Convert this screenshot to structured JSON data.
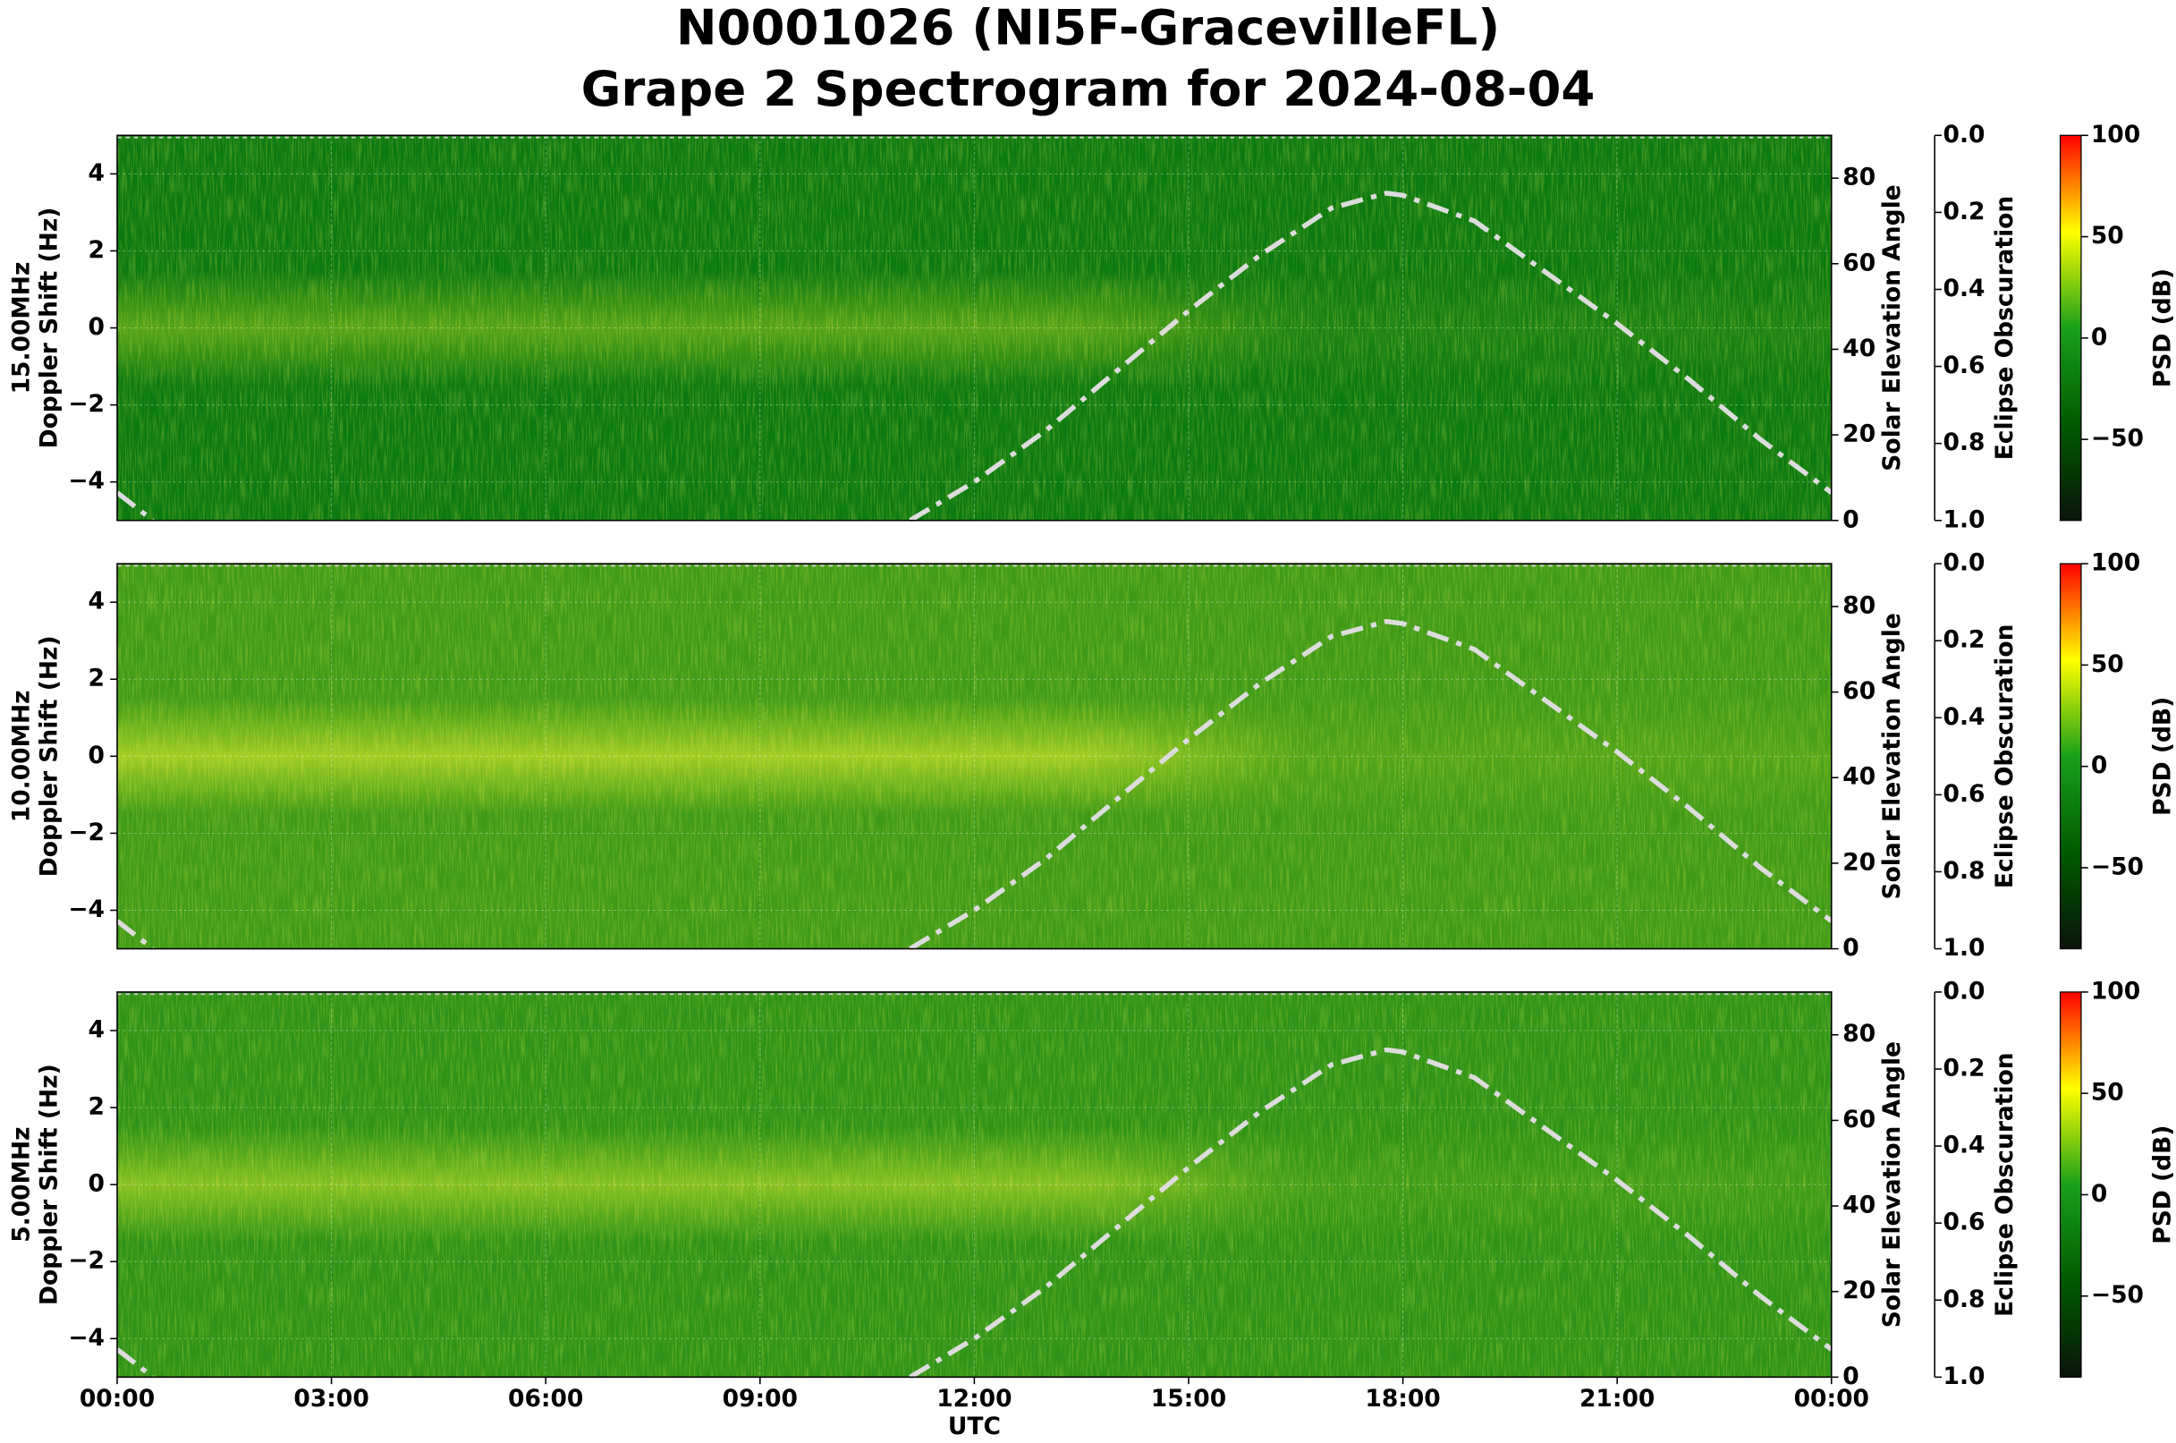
{
  "title": [
    "N0001026 (NI5F-GracevilleFL)",
    "Grape 2 Spectrogram for 2024-08-04"
  ],
  "chart_data": [
    {
      "type": "spectrogram",
      "ylabel": [
        "15.00MHz",
        "Doppler Shift (Hz)"
      ],
      "ylim": [
        -5,
        5
      ],
      "yticks": [
        {
          "value": -4,
          "label": "−4"
        },
        {
          "value": -2,
          "label": "−2"
        },
        0,
        2,
        4
      ],
      "grid": true,
      "y2label": "Solar Elevation Angle",
      "y2lim": [
        0,
        90
      ],
      "y2ticks": [
        0,
        20,
        40,
        60,
        80
      ],
      "y3label": "Eclipse Obscuration",
      "y3lim": [
        0,
        1
      ],
      "y3inverted": true,
      "y3ticks": [
        {
          "value": 0,
          "label": "0.0"
        },
        {
          "value": 0.2,
          "label": "0.2"
        },
        {
          "value": 0.4,
          "label": "0.4"
        },
        {
          "value": 0.6,
          "label": "0.6"
        },
        {
          "value": 0.8,
          "label": "0.8"
        },
        {
          "value": 1,
          "label": "1.0"
        }
      ],
      "clabel": "PSD (dB)",
      "clim": [
        -90,
        100
      ],
      "cticks": [
        100,
        50,
        0,
        {
          "value": -50,
          "label": "−50"
        }
      ],
      "cmap": [
        "#0a140a",
        "#005a00",
        "#1aa01a",
        "#ffff00",
        "#ff0000"
      ],
      "series": [
        {
          "color": "#dcdcdc",
          "axis": "y2",
          "x": [
            0,
            0.5,
            6,
            11.1,
            12,
            13,
            14,
            15,
            16,
            17,
            17.77,
            18,
            19,
            20,
            21,
            22,
            23,
            24
          ],
          "values": [
            6.5,
            0,
            null,
            0,
            9,
            21,
            35,
            49,
            62,
            73,
            76.5,
            76,
            70,
            58,
            46,
            33,
            19,
            6.5
          ]
        }
      ]
    },
    {
      "type": "spectrogram",
      "ylabel": [
        "10.00MHz",
        "Doppler Shift (Hz)"
      ],
      "ylim": [
        -5,
        5
      ],
      "yticks": [
        {
          "value": -4,
          "label": "−4"
        },
        {
          "value": -2,
          "label": "−2"
        },
        0,
        2,
        4
      ],
      "grid": true,
      "y2label": "Solar Elevation Angle",
      "y2lim": [
        0,
        90
      ],
      "y2ticks": [
        0,
        20,
        40,
        60,
        80
      ],
      "y3label": "Eclipse Obscuration",
      "y3lim": [
        0,
        1
      ],
      "y3inverted": true,
      "y3ticks": [
        {
          "value": 0,
          "label": "0.0"
        },
        {
          "value": 0.2,
          "label": "0.2"
        },
        {
          "value": 0.4,
          "label": "0.4"
        },
        {
          "value": 0.6,
          "label": "0.6"
        },
        {
          "value": 0.8,
          "label": "0.8"
        },
        {
          "value": 1,
          "label": "1.0"
        }
      ],
      "clabel": "PSD (dB)",
      "clim": [
        -90,
        100
      ],
      "cticks": [
        100,
        50,
        0,
        {
          "value": -50,
          "label": "−50"
        }
      ],
      "cmap": [
        "#0a140a",
        "#005a00",
        "#1aa01a",
        "#ffff00",
        "#ff0000"
      ],
      "series": [
        {
          "color": "#dcdcdc",
          "axis": "y2",
          "x": [
            0,
            0.5,
            6,
            11.1,
            12,
            13,
            14,
            15,
            16,
            17,
            17.77,
            18,
            19,
            20,
            21,
            22,
            23,
            24
          ],
          "values": [
            6.5,
            0,
            null,
            0,
            9,
            21,
            35,
            49,
            62,
            73,
            76.5,
            76,
            70,
            58,
            46,
            33,
            19,
            6.5
          ]
        }
      ]
    },
    {
      "type": "spectrogram",
      "ylabel": [
        "5.00MHz",
        "Doppler Shift (Hz)"
      ],
      "ylim": [
        -5,
        5
      ],
      "yticks": [
        {
          "value": -4,
          "label": "−4"
        },
        {
          "value": -2,
          "label": "−2"
        },
        0,
        2,
        4
      ],
      "grid": true,
      "y2label": "Solar Elevation Angle",
      "y2lim": [
        0,
        90
      ],
      "y2ticks": [
        0,
        20,
        40,
        60,
        80
      ],
      "y3label": "Eclipse Obscuration",
      "y3lim": [
        0,
        1
      ],
      "y3inverted": true,
      "y3ticks": [
        {
          "value": 0,
          "label": "0.0"
        },
        {
          "value": 0.2,
          "label": "0.2"
        },
        {
          "value": 0.4,
          "label": "0.4"
        },
        {
          "value": 0.6,
          "label": "0.6"
        },
        {
          "value": 0.8,
          "label": "0.8"
        },
        {
          "value": 1,
          "label": "1.0"
        }
      ],
      "clabel": "PSD (dB)",
      "clim": [
        -90,
        100
      ],
      "cticks": [
        100,
        50,
        0,
        {
          "value": -50,
          "label": "−50"
        }
      ],
      "cmap": [
        "#0a140a",
        "#005a00",
        "#1aa01a",
        "#ffff00",
        "#ff0000"
      ],
      "xlim": [
        0,
        24
      ],
      "xlabel": "UTC",
      "xticks": [
        {
          "value": 0,
          "label": "00:00"
        },
        {
          "value": 3,
          "label": "03:00"
        },
        {
          "value": 6,
          "label": "06:00"
        },
        {
          "value": 9,
          "label": "09:00"
        },
        {
          "value": 12,
          "label": "12:00"
        },
        {
          "value": 15,
          "label": "15:00"
        },
        {
          "value": 18,
          "label": "18:00"
        },
        {
          "value": 21,
          "label": "21:00"
        },
        {
          "value": 24,
          "label": "00:00"
        }
      ],
      "series": [
        {
          "color": "#dcdcdc",
          "axis": "y2",
          "x": [
            0,
            0.5,
            6,
            11.1,
            12,
            13,
            14,
            15,
            16,
            17,
            17.77,
            18,
            19,
            20,
            21,
            22,
            23,
            24
          ],
          "values": [
            6.5,
            0,
            null,
            0,
            9,
            21,
            35,
            49,
            62,
            73,
            76.5,
            76,
            70,
            58,
            46,
            33,
            19,
            6.5
          ]
        }
      ]
    }
  ]
}
